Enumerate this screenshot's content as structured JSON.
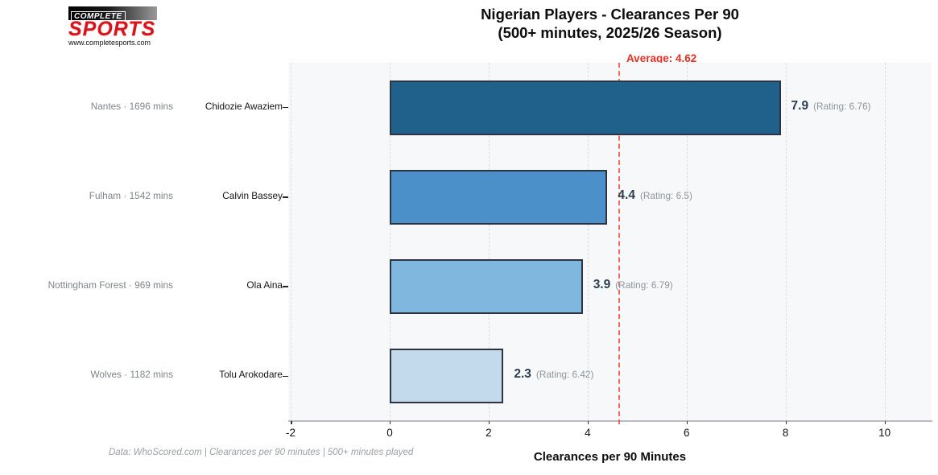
{
  "header": {
    "logo": {
      "top_text": "COMPLETE",
      "name_text": "SPORTS",
      "url_text": "www.completesports.com",
      "brand_red": "#d8131b"
    },
    "title_line1": "Nigerian Players - Clearances Per 90",
    "title_line2": "(500+ minutes, 2025/26 Season)"
  },
  "chart_data": {
    "type": "bar",
    "orientation": "horizontal",
    "title": "Nigerian Players - Clearances Per 90 (500+ minutes, 2025/26 Season)",
    "xlabel": "Clearances per 90 Minutes",
    "xlim": [
      -2.05,
      10.95
    ],
    "xticks": [
      -2,
      0,
      2,
      4,
      6,
      8,
      10
    ],
    "grid": "vertical-dashed",
    "legend": "none",
    "average": 4.62,
    "average_label": "Average: 4.62",
    "average_line_color": "#ed5246",
    "players": [
      {
        "name": "Chidozie Awaziem",
        "team": "Nantes",
        "minutes": 1696,
        "meta_label": "Nantes · 1696 mins",
        "value": 7.9,
        "value_label": "7.9",
        "rating": 6.76,
        "rating_label": "(Rating: 6.76)",
        "bar_color": "#20618c"
      },
      {
        "name": "Calvin Bassey",
        "team": "Fulham",
        "minutes": 1542,
        "meta_label": "Fulham · 1542 mins",
        "value": 4.4,
        "value_label": "4.4",
        "rating": 6.5,
        "rating_label": "(Rating: 6.5)",
        "bar_color": "#4b90c8"
      },
      {
        "name": "Ola Aina",
        "team": "Nottingham Forest",
        "minutes": 969,
        "meta_label": "Nottingham Forest · 969 mins",
        "value": 3.9,
        "value_label": "3.9",
        "rating": 6.79,
        "rating_label": "(Rating: 6.79)",
        "bar_color": "#7fb7de"
      },
      {
        "name": "Tolu Arokodare",
        "team": "Wolves",
        "minutes": 1182,
        "meta_label": "Wolves · 1182 mins",
        "value": 2.3,
        "value_label": "2.3",
        "rating": 6.42,
        "rating_label": "(Rating: 6.42)",
        "bar_color": "#c3d9ec"
      }
    ],
    "bar_edge_color": "#2b3440",
    "value_color": "#2c3e50",
    "rating_color": "#8d959c",
    "plot_bg": "#f7f8fa"
  },
  "footer": {
    "source_note": "Data: WhoScored.com | Clearances per 90 minutes | 500+ minutes played",
    "xaxis_title": "Clearances per 90 Minutes"
  }
}
